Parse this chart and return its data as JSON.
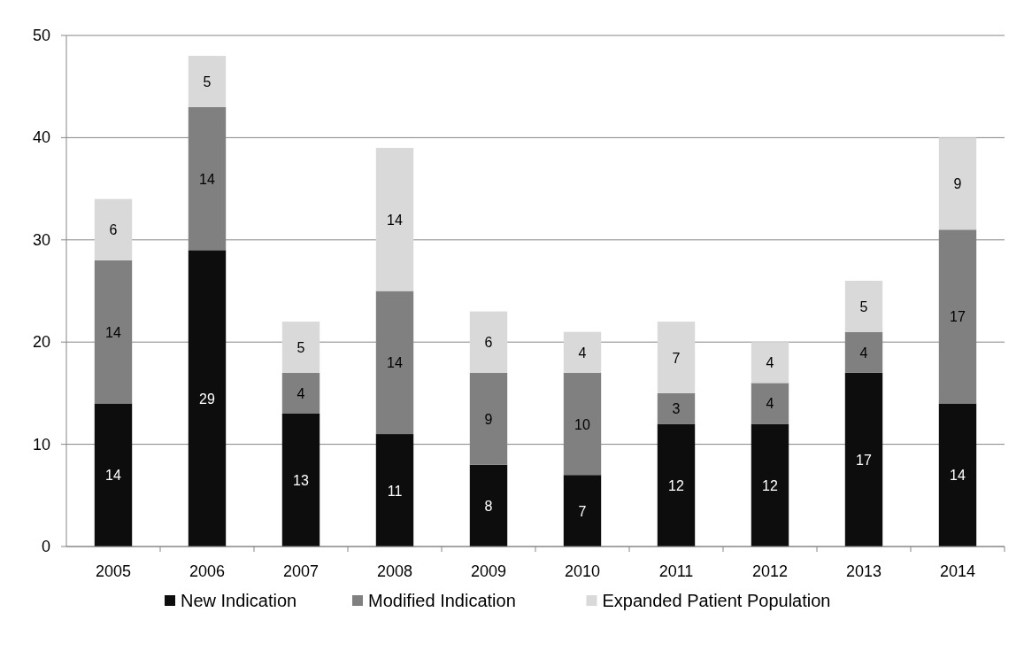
{
  "chart_data": {
    "type": "bar",
    "stacked": true,
    "categories": [
      "2005",
      "2006",
      "2007",
      "2008",
      "2009",
      "2010",
      "2011",
      "2012",
      "2013",
      "2014"
    ],
    "series": [
      {
        "name": "New Indication",
        "color": "#0d0d0d",
        "values": [
          14,
          29,
          13,
          11,
          8,
          7,
          12,
          12,
          17,
          14
        ]
      },
      {
        "name": "Modified Indication",
        "color": "#808080",
        "values": [
          14,
          14,
          4,
          14,
          9,
          10,
          3,
          4,
          4,
          17
        ]
      },
      {
        "name": "Expanded Patient Population",
        "color": "#d9d9d9",
        "values": [
          6,
          5,
          5,
          14,
          6,
          4,
          7,
          4,
          5,
          9
        ]
      }
    ],
    "ylim": [
      0,
      50
    ],
    "yticks": [
      0,
      10,
      20,
      30,
      40,
      50
    ],
    "grid": "y",
    "legend": "bottom",
    "data_labels": true
  }
}
